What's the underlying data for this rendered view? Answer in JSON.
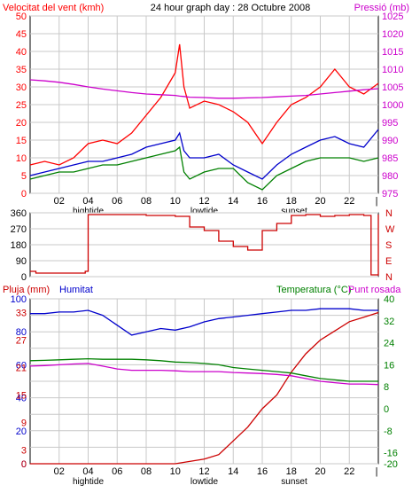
{
  "chart_data": [
    {
      "type": "line",
      "panel": "wind-pressure",
      "title": "24 hour graph day : 28 Octubre 2008",
      "left_axis_label": "Velocitat del vent (kmh)",
      "right_axis_label": "Pressió (mb)",
      "ylim_left": [
        0,
        50
      ],
      "ylim_right": [
        975,
        1025
      ],
      "yticks_left": [
        "0",
        "5",
        "10",
        "15",
        "20",
        "25",
        "30",
        "35",
        "40",
        "45",
        "50"
      ],
      "yticks_right": [
        "975",
        "980",
        "985",
        "990",
        "995",
        "1000",
        "1005",
        "1010",
        "1015",
        "1020",
        "1025"
      ],
      "xticks": [
        "02",
        "04",
        "06",
        "08",
        "10",
        "12",
        "14",
        "16",
        "18",
        "20",
        "22"
      ],
      "x_events": [
        {
          "label": "hightide",
          "hour": 4
        },
        {
          "label": "lowtide",
          "hour": 12
        },
        {
          "label": "sunset",
          "hour": 18.2
        }
      ],
      "x": [
        0,
        1,
        2,
        3,
        4,
        5,
        6,
        7,
        8,
        9,
        10,
        10.3,
        10.6,
        11,
        12,
        13,
        14,
        15,
        16,
        17,
        18,
        19,
        20,
        21,
        22,
        23,
        24
      ],
      "series": [
        {
          "name": "gust",
          "color": "#ff0000",
          "values": [
            8,
            9,
            8,
            10,
            14,
            15,
            14,
            17,
            22,
            27,
            34,
            42,
            30,
            24,
            26,
            25,
            23,
            20,
            14,
            20,
            25,
            27,
            30,
            35,
            30,
            28,
            31
          ]
        },
        {
          "name": "avg",
          "color": "#0000cc",
          "values": [
            5,
            6,
            7,
            8,
            9,
            9,
            10,
            11,
            13,
            14,
            15,
            17,
            12,
            10,
            10,
            11,
            8,
            6,
            4,
            8,
            11,
            13,
            15,
            16,
            14,
            13,
            18
          ]
        },
        {
          "name": "min",
          "color": "#008000",
          "values": [
            4,
            5,
            6,
            6,
            7,
            8,
            8,
            9,
            10,
            11,
            12,
            13,
            6,
            4,
            6,
            7,
            7,
            3,
            1,
            5,
            7,
            9,
            10,
            10,
            10,
            9,
            10
          ]
        },
        {
          "name": "pressure",
          "color": "#cc00cc",
          "axis": "right",
          "values": [
            1007,
            1006.7,
            1006.3,
            1005.7,
            1005,
            1004.4,
            1003.9,
            1003.4,
            1003,
            1002.8,
            1002.6,
            1002.4,
            1002.3,
            1002.1,
            1002,
            1001.8,
            1001.8,
            1001.9,
            1002,
            1002.2,
            1002.4,
            1002.6,
            1003,
            1003.4,
            1003.8,
            1004.2,
            1004.5
          ]
        }
      ]
    },
    {
      "type": "line",
      "panel": "wind-direction",
      "ylim": [
        0,
        360
      ],
      "yticks": [
        "0",
        "90",
        "180",
        "270",
        "360"
      ],
      "right_labels": [
        "N",
        "W",
        "S",
        "E",
        "N"
      ],
      "x": [
        0,
        0.4,
        1,
        2,
        3,
        3.6,
        3.8,
        4,
        5,
        6,
        7,
        8,
        9,
        10,
        11,
        12,
        13,
        14,
        15,
        16,
        17,
        18,
        19,
        20,
        21,
        22,
        23,
        23.5,
        24
      ],
      "series": [
        {
          "name": "direction",
          "color": "#cc0000",
          "values": [
            30,
            20,
            20,
            20,
            20,
            20,
            30,
            350,
            350,
            350,
            350,
            345,
            345,
            340,
            280,
            260,
            200,
            170,
            150,
            260,
            300,
            345,
            350,
            340,
            345,
            350,
            345,
            10,
            350
          ]
        }
      ]
    },
    {
      "type": "line",
      "panel": "rain-humidity-temperature",
      "left_axis_label": "Pluja (mm)",
      "left_axis_label_2": "Humitat",
      "right_axis_label": "Temperatura (°C)",
      "right_axis_label_2": "Punt rosada",
      "ylim_humidity": [
        0,
        100
      ],
      "ylim_temperature": [
        -20,
        40
      ],
      "yticks_humidity": [
        "0",
        "10",
        "20",
        "30",
        "40",
        "50",
        "60",
        "70",
        "80",
        "90",
        "100"
      ],
      "yticks_rain": [
        "0",
        "3",
        "6",
        "9",
        "12",
        "15",
        "18",
        "21",
        "24",
        "27",
        "30",
        "33",
        "36"
      ],
      "yticks_temperature": [
        "-20",
        "-16",
        "-12",
        "-8",
        "-4",
        "0",
        "4",
        "8",
        "12",
        "16",
        "20",
        "24",
        "28",
        "32",
        "36",
        "40"
      ],
      "xticks": [
        "02",
        "04",
        "06",
        "08",
        "10",
        "12",
        "14",
        "16",
        "18",
        "20",
        "22"
      ],
      "x_events": [
        {
          "label": "hightide",
          "hour": 4
        },
        {
          "label": "lowtide",
          "hour": 12
        },
        {
          "label": "sunset",
          "hour": 18.2
        }
      ],
      "x": [
        0,
        1,
        2,
        3,
        4,
        5,
        6,
        7,
        8,
        9,
        10,
        11,
        12,
        13,
        14,
        15,
        16,
        17,
        18,
        19,
        20,
        21,
        22,
        23,
        24
      ],
      "series": [
        {
          "name": "Humitat",
          "color": "#0000cc",
          "values": [
            91,
            91,
            92,
            92,
            93,
            90,
            84,
            78,
            80,
            82,
            81,
            83,
            86,
            88,
            89,
            90,
            91,
            92,
            93,
            93,
            94,
            94,
            94,
            93,
            93
          ]
        },
        {
          "name": "Pluja (mm)",
          "color": "#cc0000",
          "values": [
            0,
            0,
            0,
            0,
            0,
            0,
            0,
            0,
            0,
            0,
            0,
            0.5,
            1,
            2,
            5,
            8,
            12,
            15,
            20,
            24,
            27,
            29,
            31,
            32,
            33
          ]
        },
        {
          "name": "Temperatura (°C)",
          "color": "#008000",
          "values": [
            17.5,
            17.6,
            17.8,
            18,
            18.2,
            18,
            18,
            18,
            17.8,
            17.5,
            17,
            16.8,
            16.5,
            16,
            15,
            14.5,
            14,
            13.5,
            13,
            12,
            11,
            10.5,
            10,
            10,
            10
          ]
        },
        {
          "name": "Punt rosada",
          "color": "#cc00cc",
          "values": [
            15.5,
            15.7,
            16,
            16.3,
            16.5,
            15.5,
            14.5,
            14,
            14,
            14,
            13.8,
            13.5,
            13.5,
            13.5,
            13.2,
            13,
            12.8,
            12.5,
            12,
            11,
            10,
            9.5,
            9,
            9,
            8.8
          ]
        }
      ]
    }
  ]
}
